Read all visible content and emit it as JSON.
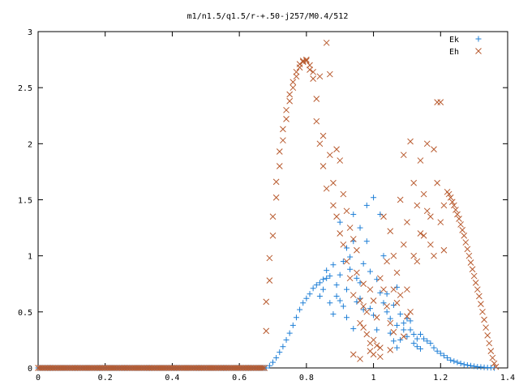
{
  "chart_data": {
    "type": "scatter",
    "title": "m1/n1.5/q1.5/r-+.50-j257/M0.4/512",
    "xlabel": "",
    "ylabel": "",
    "xlim": [
      0,
      1.4
    ],
    "ylim": [
      0,
      3
    ],
    "x_ticks": [
      "0",
      "0.2",
      "0.4",
      "0.6",
      "0.8",
      "1",
      "1.2",
      "1.4"
    ],
    "y_ticks": [
      "0",
      "0.5",
      "1",
      "1.5",
      "2",
      "2.5",
      "3"
    ],
    "grid": false,
    "legend_position": "top-right",
    "series": [
      {
        "name": "Ek",
        "marker": "plus",
        "color": "#1f7fd6",
        "points": [
          [
            0.68,
            0.0
          ],
          [
            0.69,
            0.02
          ],
          [
            0.7,
            0.05
          ],
          [
            0.71,
            0.09
          ],
          [
            0.72,
            0.14
          ],
          [
            0.73,
            0.19
          ],
          [
            0.74,
            0.25
          ],
          [
            0.75,
            0.31
          ],
          [
            0.76,
            0.38
          ],
          [
            0.77,
            0.45
          ],
          [
            0.78,
            0.52
          ],
          [
            0.79,
            0.58
          ],
          [
            0.8,
            0.62
          ],
          [
            0.81,
            0.66
          ],
          [
            0.82,
            0.71
          ],
          [
            0.83,
            0.74
          ],
          [
            0.84,
            0.76
          ],
          [
            0.85,
            0.79
          ],
          [
            0.86,
            0.8
          ],
          [
            0.87,
            0.82
          ],
          [
            0.84,
            0.64
          ],
          [
            0.85,
            0.7
          ],
          [
            0.86,
            0.87
          ],
          [
            0.87,
            0.58
          ],
          [
            0.88,
            0.92
          ],
          [
            0.89,
            0.74
          ],
          [
            0.9,
            0.83
          ],
          [
            0.88,
            0.48
          ],
          [
            0.89,
            0.64
          ],
          [
            0.91,
            0.95
          ],
          [
            0.92,
            0.7
          ],
          [
            0.93,
            0.88
          ],
          [
            0.9,
            0.6
          ],
          [
            0.91,
            0.55
          ],
          [
            0.92,
            1.07
          ],
          [
            0.93,
            0.99
          ],
          [
            0.94,
            1.13
          ],
          [
            0.95,
            0.8
          ],
          [
            0.95,
            0.59
          ],
          [
            0.96,
            0.76
          ],
          [
            0.97,
            0.52
          ],
          [
            0.97,
            0.93
          ],
          [
            0.98,
            1.13
          ],
          [
            0.99,
            0.53
          ],
          [
            1.0,
            0.47
          ],
          [
            1.0,
            1.52
          ],
          [
            1.01,
            0.34
          ],
          [
            1.01,
            0.79
          ],
          [
            1.02,
            0.67
          ],
          [
            1.02,
            1.37
          ],
          [
            1.03,
            0.58
          ],
          [
            1.03,
            1.0
          ],
          [
            1.04,
            0.5
          ],
          [
            1.04,
            0.66
          ],
          [
            1.05,
            0.44
          ],
          [
            1.05,
            0.31
          ],
          [
            1.06,
            0.56
          ],
          [
            1.06,
            0.24
          ],
          [
            1.07,
            0.38
          ],
          [
            1.07,
            0.72
          ],
          [
            0.9,
            1.3
          ],
          [
            0.94,
            1.37
          ],
          [
            0.96,
            1.25
          ],
          [
            0.98,
            1.45
          ],
          [
            0.92,
            0.45
          ],
          [
            0.94,
            0.35
          ],
          [
            0.99,
            0.86
          ],
          [
            0.96,
            0.62
          ],
          [
            1.08,
            0.48
          ],
          [
            1.09,
            0.4
          ],
          [
            1.1,
            0.44
          ],
          [
            1.11,
            0.34
          ],
          [
            1.12,
            0.3
          ],
          [
            1.13,
            0.26
          ],
          [
            1.14,
            0.3
          ],
          [
            1.15,
            0.26
          ],
          [
            1.16,
            0.24
          ],
          [
            1.17,
            0.22
          ],
          [
            1.18,
            0.18
          ],
          [
            1.19,
            0.15
          ],
          [
            1.2,
            0.13
          ],
          [
            1.21,
            0.11
          ],
          [
            1.22,
            0.09
          ],
          [
            1.23,
            0.07
          ],
          [
            1.24,
            0.06
          ],
          [
            1.25,
            0.05
          ],
          [
            1.26,
            0.04
          ],
          [
            1.27,
            0.03
          ],
          [
            1.28,
            0.025
          ],
          [
            1.29,
            0.02
          ],
          [
            1.3,
            0.015
          ],
          [
            1.31,
            0.01
          ],
          [
            1.32,
            0.008
          ],
          [
            1.33,
            0.005
          ],
          [
            1.34,
            0.003
          ],
          [
            1.35,
            0.002
          ],
          [
            1.36,
            0.0
          ],
          [
            1.09,
            0.34
          ],
          [
            1.1,
            0.28
          ],
          [
            1.11,
            0.42
          ],
          [
            1.12,
            0.22
          ],
          [
            1.13,
            0.19
          ],
          [
            1.14,
            0.17
          ],
          [
            1.08,
            0.25
          ],
          [
            1.07,
            0.18
          ]
        ]
      },
      {
        "name": "Eh",
        "marker": "cross",
        "color": "#b85a2e",
        "points": [
          [
            0.68,
            0.33
          ],
          [
            0.68,
            0.59
          ],
          [
            0.69,
            0.78
          ],
          [
            0.69,
            0.98
          ],
          [
            0.7,
            1.18
          ],
          [
            0.7,
            1.35
          ],
          [
            0.71,
            1.52
          ],
          [
            0.71,
            1.66
          ],
          [
            0.72,
            1.8
          ],
          [
            0.72,
            1.93
          ],
          [
            0.73,
            2.03
          ],
          [
            0.73,
            2.13
          ],
          [
            0.74,
            2.22
          ],
          [
            0.74,
            2.3
          ],
          [
            0.75,
            2.38
          ],
          [
            0.75,
            2.44
          ],
          [
            0.76,
            2.5
          ],
          [
            0.76,
            2.55
          ],
          [
            0.77,
            2.6
          ],
          [
            0.77,
            2.64
          ],
          [
            0.78,
            2.68
          ],
          [
            0.78,
            2.71
          ],
          [
            0.79,
            2.73
          ],
          [
            0.79,
            2.74
          ],
          [
            0.8,
            2.75
          ],
          [
            0.8,
            2.74
          ],
          [
            0.81,
            2.7
          ],
          [
            0.81,
            2.66
          ],
          [
            0.82,
            2.64
          ],
          [
            0.82,
            2.58
          ],
          [
            0.83,
            2.4
          ],
          [
            0.83,
            2.2
          ],
          [
            0.84,
            2.6
          ],
          [
            0.84,
            2.0
          ],
          [
            0.85,
            2.07
          ],
          [
            0.85,
            1.8
          ],
          [
            0.86,
            2.9
          ],
          [
            0.86,
            1.6
          ],
          [
            0.87,
            2.62
          ],
          [
            0.87,
            1.9
          ],
          [
            0.88,
            1.45
          ],
          [
            0.88,
            1.65
          ],
          [
            0.89,
            1.95
          ],
          [
            0.89,
            1.35
          ],
          [
            0.9,
            1.85
          ],
          [
            0.9,
            1.2
          ],
          [
            0.91,
            1.55
          ],
          [
            0.91,
            1.1
          ],
          [
            0.92,
            1.4
          ],
          [
            0.92,
            0.95
          ],
          [
            0.93,
            1.25
          ],
          [
            0.93,
            0.8
          ],
          [
            0.94,
            1.15
          ],
          [
            0.94,
            0.65
          ],
          [
            0.95,
            1.05
          ],
          [
            0.95,
            0.85
          ],
          [
            0.96,
            0.6
          ],
          [
            0.96,
            0.4
          ],
          [
            0.97,
            0.75
          ],
          [
            0.97,
            0.55
          ],
          [
            0.98,
            0.5
          ],
          [
            0.98,
            0.3
          ],
          [
            0.99,
            0.7
          ],
          [
            0.99,
            0.15
          ],
          [
            1.0,
            0.6
          ],
          [
            1.0,
            0.25
          ],
          [
            1.01,
            0.45
          ],
          [
            1.01,
            0.2
          ],
          [
            1.02,
            0.8
          ],
          [
            1.02,
            0.1
          ],
          [
            1.03,
            0.7
          ],
          [
            1.03,
            1.35
          ],
          [
            1.04,
            0.55
          ],
          [
            1.04,
            0.95
          ],
          [
            1.05,
            0.4
          ],
          [
            1.05,
            1.22
          ],
          [
            1.06,
            0.7
          ],
          [
            1.06,
            1.0
          ],
          [
            1.07,
            0.58
          ],
          [
            1.07,
            0.85
          ],
          [
            1.08,
            1.5
          ],
          [
            1.08,
            0.65
          ],
          [
            1.09,
            1.9
          ],
          [
            1.09,
            1.1
          ],
          [
            1.1,
            0.7
          ],
          [
            1.1,
            1.3
          ],
          [
            1.11,
            2.02
          ],
          [
            1.11,
            0.5
          ],
          [
            1.12,
            1.65
          ],
          [
            1.12,
            1.0
          ],
          [
            1.13,
            1.45
          ],
          [
            1.13,
            0.95
          ],
          [
            1.14,
            1.2
          ],
          [
            1.14,
            1.85
          ],
          [
            1.15,
            1.55
          ],
          [
            1.15,
            1.18
          ],
          [
            1.16,
            2.0
          ],
          [
            1.16,
            1.4
          ],
          [
            1.17,
            1.1
          ],
          [
            1.17,
            1.35
          ],
          [
            1.18,
            1.0
          ],
          [
            1.18,
            1.95
          ],
          [
            1.19,
            2.37
          ],
          [
            1.19,
            1.65
          ],
          [
            1.2,
            2.37
          ],
          [
            1.2,
            1.3
          ],
          [
            1.21,
            1.05
          ],
          [
            1.21,
            1.45
          ],
          [
            1.22,
            1.57
          ],
          [
            1.225,
            1.55
          ],
          [
            1.23,
            1.52
          ],
          [
            1.235,
            1.48
          ],
          [
            1.24,
            1.45
          ],
          [
            1.245,
            1.41
          ],
          [
            1.25,
            1.37
          ],
          [
            1.255,
            1.33
          ],
          [
            1.26,
            1.28
          ],
          [
            1.265,
            1.23
          ],
          [
            1.27,
            1.18
          ],
          [
            1.275,
            1.12
          ],
          [
            1.28,
            1.06
          ],
          [
            1.285,
            1.0
          ],
          [
            1.29,
            0.94
          ],
          [
            1.295,
            0.88
          ],
          [
            1.3,
            0.82
          ],
          [
            1.305,
            0.76
          ],
          [
            1.31,
            0.7
          ],
          [
            1.315,
            0.64
          ],
          [
            1.32,
            0.57
          ],
          [
            1.325,
            0.5
          ],
          [
            1.33,
            0.43
          ],
          [
            1.335,
            0.36
          ],
          [
            1.34,
            0.29
          ],
          [
            1.345,
            0.22
          ],
          [
            1.35,
            0.15
          ],
          [
            1.355,
            0.09
          ],
          [
            1.36,
            0.04
          ],
          [
            1.365,
            0.01
          ],
          [
            0.97,
            0.36
          ],
          [
            0.99,
            0.22
          ],
          [
            1.02,
            0.18
          ],
          [
            1.05,
            0.16
          ],
          [
            1.06,
            0.32
          ],
          [
            1.09,
            0.28
          ],
          [
            1.1,
            0.46
          ],
          [
            0.94,
            0.12
          ],
          [
            0.96,
            0.08
          ],
          [
            1.0,
            0.12
          ]
        ]
      }
    ]
  }
}
